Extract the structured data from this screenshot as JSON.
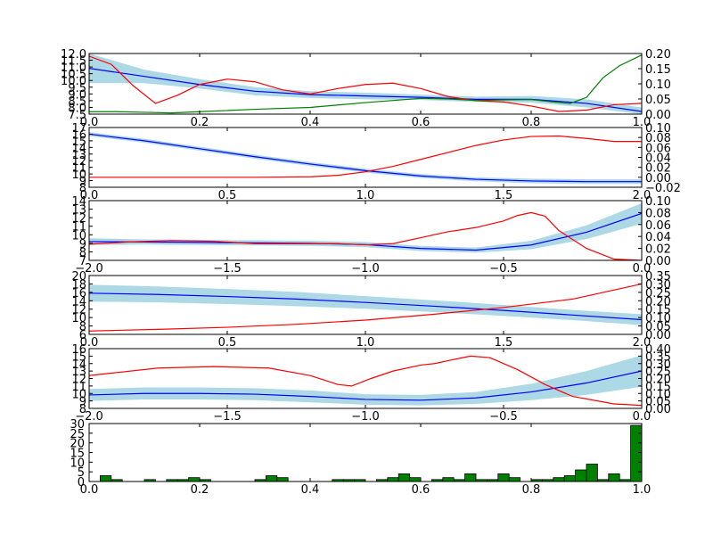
{
  "chart_data": [
    {
      "type": "line",
      "xlim": [
        0,
        1
      ],
      "ylim_left": [
        7.5,
        12.0
      ],
      "ylim_right": [
        0.0,
        0.2
      ],
      "x_ticks": [
        "0.0",
        "0.2",
        "0.4",
        "0.6",
        "0.8",
        "1.0"
      ],
      "x_tick_values": [
        0,
        0.2,
        0.4,
        0.6,
        0.8,
        1.0
      ],
      "yleft_ticks": [
        "7.5",
        "8.0",
        "8.5",
        "9.0",
        "9.5",
        "10.0",
        "10.5",
        "11.0",
        "11.5",
        "12.0"
      ],
      "yleft_tick_values": [
        7.5,
        8.0,
        8.5,
        9.0,
        9.5,
        10.0,
        10.5,
        11.0,
        11.5,
        12.0
      ],
      "yright_ticks": [
        "0.00",
        "0.05",
        "0.10",
        "0.15",
        "0.20"
      ],
      "yright_tick_values": [
        0,
        0.05,
        0.1,
        0.15,
        0.2
      ],
      "band_color": "#add8e6",
      "series": [
        {
          "role": "mean",
          "axis": "left",
          "color": "#0000ff",
          "x": [
            0,
            0.1,
            0.2,
            0.3,
            0.4,
            0.5,
            0.6,
            0.7,
            0.8,
            0.9,
            1.0
          ],
          "y": [
            10.9,
            10.3,
            9.7,
            9.2,
            8.95,
            8.85,
            8.75,
            8.6,
            8.6,
            8.3,
            7.7
          ]
        },
        {
          "role": "band",
          "axis": "left",
          "x": [
            0,
            0.1,
            0.2,
            0.3,
            0.4,
            0.5,
            0.6,
            0.7,
            0.8,
            0.9,
            1.0
          ],
          "lower": [
            9.8,
            9.8,
            9.4,
            8.9,
            8.7,
            8.6,
            8.55,
            8.4,
            8.35,
            8.0,
            7.5
          ],
          "upper": [
            12.0,
            10.8,
            10.1,
            9.5,
            9.2,
            9.1,
            8.95,
            8.8,
            8.85,
            8.6,
            8.0
          ]
        },
        {
          "role": "line",
          "axis": "left",
          "color": "#ff0000",
          "x": [
            0,
            0.04,
            0.08,
            0.12,
            0.16,
            0.2,
            0.25,
            0.3,
            0.35,
            0.4,
            0.45,
            0.5,
            0.55,
            0.6,
            0.65,
            0.7,
            0.75,
            0.8,
            0.85,
            0.9,
            0.95,
            1.0
          ],
          "y": [
            11.8,
            11.2,
            9.6,
            8.3,
            8.9,
            9.7,
            10.1,
            9.9,
            9.3,
            9.0,
            9.4,
            9.7,
            9.8,
            9.4,
            8.8,
            8.5,
            8.4,
            8.1,
            7.7,
            7.8,
            8.2,
            8.3
          ]
        },
        {
          "role": "line",
          "axis": "right",
          "color": "#008000",
          "x": [
            0,
            0.05,
            0.1,
            0.15,
            0.2,
            0.3,
            0.4,
            0.5,
            0.6,
            0.65,
            0.7,
            0.75,
            0.8,
            0.84,
            0.87,
            0.9,
            0.93,
            0.96,
            1.0
          ],
          "y": [
            0.008,
            0.008,
            0.006,
            0.004,
            0.008,
            0.016,
            0.022,
            0.038,
            0.052,
            0.05,
            0.045,
            0.047,
            0.048,
            0.04,
            0.035,
            0.055,
            0.12,
            0.16,
            0.195
          ]
        }
      ]
    },
    {
      "type": "line",
      "xlim": [
        0,
        2
      ],
      "ylim_left": [
        8,
        17
      ],
      "ylim_right": [
        -0.02,
        0.1
      ],
      "x_ticks": [
        "0.0",
        "0.5",
        "1.0",
        "1.5",
        "2.0"
      ],
      "x_tick_values": [
        0,
        0.5,
        1.0,
        1.5,
        2.0
      ],
      "yleft_ticks": [
        "8",
        "9",
        "10",
        "11",
        "12",
        "13",
        "14",
        "15",
        "16",
        "17"
      ],
      "yleft_tick_values": [
        8,
        9,
        10,
        11,
        12,
        13,
        14,
        15,
        16,
        17
      ],
      "yright_ticks": [
        "−0.02",
        "0.00",
        "0.02",
        "0.04",
        "0.06",
        "0.08",
        "0.10"
      ],
      "yright_tick_values": [
        -0.02,
        0,
        0.02,
        0.04,
        0.06,
        0.08,
        0.1
      ],
      "band_color": "#add8e6",
      "series": [
        {
          "role": "mean",
          "axis": "left",
          "color": "#0000ff",
          "x": [
            0,
            0.2,
            0.4,
            0.6,
            0.8,
            1.0,
            1.2,
            1.4,
            1.6,
            1.8,
            2.0
          ],
          "y": [
            16.0,
            15.0,
            13.8,
            12.6,
            11.5,
            10.5,
            9.7,
            9.2,
            8.95,
            8.85,
            8.85
          ]
        },
        {
          "role": "band",
          "axis": "left",
          "x": [
            0,
            0.2,
            0.4,
            0.6,
            0.8,
            1.0,
            1.2,
            1.4,
            1.6,
            1.8,
            2.0
          ],
          "lower": [
            15.7,
            14.7,
            13.5,
            12.3,
            11.2,
            10.2,
            9.4,
            8.9,
            8.6,
            8.5,
            8.5
          ],
          "upper": [
            16.3,
            15.3,
            14.1,
            12.9,
            11.8,
            10.8,
            10.0,
            9.5,
            9.3,
            9.2,
            9.2
          ]
        },
        {
          "role": "line",
          "axis": "right",
          "color": "#ff0000",
          "x": [
            0,
            0.3,
            0.6,
            0.8,
            0.9,
            1.0,
            1.1,
            1.2,
            1.3,
            1.4,
            1.5,
            1.6,
            1.7,
            1.8,
            1.9,
            2.0
          ],
          "y": [
            0,
            0,
            0,
            0.001,
            0.004,
            0.011,
            0.022,
            0.036,
            0.05,
            0.064,
            0.075,
            0.082,
            0.083,
            0.078,
            0.072,
            0.072
          ]
        }
      ]
    },
    {
      "type": "line",
      "xlim": [
        -2,
        0
      ],
      "ylim_left": [
        7,
        14
      ],
      "ylim_right": [
        0,
        0.1
      ],
      "x_ticks": [
        "−2.0",
        "−1.5",
        "−1.0",
        "−0.5",
        "0.0"
      ],
      "x_tick_values": [
        -2,
        -1.5,
        -1,
        -0.5,
        0
      ],
      "yleft_ticks": [
        "7",
        "8",
        "9",
        "10",
        "11",
        "12",
        "13",
        "14"
      ],
      "yleft_tick_values": [
        7,
        8,
        9,
        10,
        11,
        12,
        13,
        14
      ],
      "yright_ticks": [
        "0.00",
        "0.02",
        "0.04",
        "0.06",
        "0.08",
        "0.10"
      ],
      "yright_tick_values": [
        0,
        0.02,
        0.04,
        0.06,
        0.08,
        0.1
      ],
      "band_color": "#add8e6",
      "series": [
        {
          "role": "mean",
          "axis": "left",
          "color": "#0000ff",
          "x": [
            -2,
            -1.8,
            -1.6,
            -1.4,
            -1.2,
            -1.0,
            -0.8,
            -0.6,
            -0.4,
            -0.2,
            0
          ],
          "y": [
            9.2,
            9.15,
            9.1,
            9.05,
            9.0,
            8.85,
            8.4,
            8.2,
            8.8,
            10.3,
            12.5
          ]
        },
        {
          "role": "band",
          "axis": "left",
          "x": [
            -2,
            -1.8,
            -1.6,
            -1.4,
            -1.2,
            -1.0,
            -0.8,
            -0.6,
            -0.4,
            -0.2,
            0
          ],
          "lower": [
            8.8,
            8.85,
            8.8,
            8.75,
            8.7,
            8.55,
            8.1,
            7.9,
            8.3,
            9.5,
            11.3
          ],
          "upper": [
            9.6,
            9.45,
            9.4,
            9.35,
            9.3,
            9.15,
            8.7,
            8.5,
            9.3,
            11.1,
            13.7
          ]
        },
        {
          "role": "line",
          "axis": "right",
          "color": "#ff0000",
          "x": [
            -2,
            -1.85,
            -1.7,
            -1.55,
            -1.4,
            -1.25,
            -1.1,
            -1.0,
            -0.9,
            -0.8,
            -0.7,
            -0.6,
            -0.5,
            -0.45,
            -0.4,
            -0.35,
            -0.3,
            -0.2,
            -0.1,
            0
          ],
          "y": [
            0.027,
            0.031,
            0.033,
            0.032,
            0.028,
            0.028,
            0.028,
            0.026,
            0.028,
            0.038,
            0.048,
            0.055,
            0.066,
            0.075,
            0.08,
            0.074,
            0.05,
            0.02,
            0.002,
            0
          ]
        }
      ]
    },
    {
      "type": "line",
      "xlim": [
        0,
        2
      ],
      "ylim_left": [
        6,
        20
      ],
      "ylim_right": [
        0,
        0.35
      ],
      "x_ticks": [
        "0.0",
        "0.5",
        "1.0",
        "1.5",
        "2.0"
      ],
      "x_tick_values": [
        0,
        0.5,
        1.0,
        1.5,
        2.0
      ],
      "yleft_ticks": [
        "6",
        "8",
        "10",
        "12",
        "14",
        "16",
        "18",
        "20"
      ],
      "yleft_tick_values": [
        6,
        8,
        10,
        12,
        14,
        16,
        18,
        20
      ],
      "yright_ticks": [
        "0.00",
        "0.05",
        "0.10",
        "0.15",
        "0.20",
        "0.25",
        "0.30",
        "0.35"
      ],
      "yright_tick_values": [
        0,
        0.05,
        0.1,
        0.15,
        0.2,
        0.25,
        0.3,
        0.35
      ],
      "band_color": "#add8e6",
      "series": [
        {
          "role": "mean",
          "axis": "left",
          "color": "#0000ff",
          "x": [
            0,
            0.25,
            0.5,
            0.75,
            1.0,
            1.25,
            1.5,
            1.75,
            2.0
          ],
          "y": [
            15.8,
            15.5,
            15.0,
            14.4,
            13.6,
            12.7,
            11.7,
            10.6,
            9.5
          ]
        },
        {
          "role": "band",
          "axis": "left",
          "x": [
            0,
            0.25,
            0.5,
            0.75,
            1.0,
            1.25,
            1.5,
            1.75,
            2.0
          ],
          "lower": [
            13.8,
            13.6,
            13.2,
            12.7,
            12.1,
            11.3,
            10.4,
            9.4,
            8.2
          ],
          "upper": [
            17.8,
            17.4,
            16.8,
            16.1,
            15.1,
            14.1,
            13.0,
            11.8,
            10.8
          ]
        },
        {
          "role": "line",
          "axis": "right",
          "color": "#ff0000",
          "x": [
            0,
            0.25,
            0.5,
            0.75,
            1.0,
            1.25,
            1.5,
            1.75,
            2.0
          ],
          "y": [
            0.02,
            0.03,
            0.042,
            0.06,
            0.085,
            0.12,
            0.16,
            0.21,
            0.3
          ]
        }
      ]
    },
    {
      "type": "line",
      "xlim": [
        -2,
        0
      ],
      "ylim_left": [
        8,
        16
      ],
      "ylim_right": [
        0,
        0.4
      ],
      "x_ticks": [
        "−2.0",
        "−1.5",
        "−1.0",
        "−0.5",
        "0.0"
      ],
      "x_tick_values": [
        -2,
        -1.5,
        -1,
        -0.5,
        0
      ],
      "yleft_ticks": [
        "8",
        "9",
        "10",
        "11",
        "12",
        "13",
        "14",
        "15",
        "16"
      ],
      "yleft_tick_values": [
        8,
        9,
        10,
        11,
        12,
        13,
        14,
        15,
        16
      ],
      "yright_ticks": [
        "0.00",
        "0.05",
        "0.10",
        "0.15",
        "0.20",
        "0.25",
        "0.30",
        "0.35",
        "0.40"
      ],
      "yright_tick_values": [
        0,
        0.05,
        0.1,
        0.15,
        0.2,
        0.25,
        0.3,
        0.35,
        0.4
      ],
      "band_color": "#add8e6",
      "series": [
        {
          "role": "mean",
          "axis": "left",
          "color": "#0000ff",
          "x": [
            -2,
            -1.8,
            -1.6,
            -1.4,
            -1.2,
            -1.0,
            -0.8,
            -0.6,
            -0.4,
            -0.2,
            0
          ],
          "y": [
            9.8,
            10.0,
            10.0,
            9.9,
            9.6,
            9.2,
            9.1,
            9.4,
            10.2,
            11.4,
            13.0
          ]
        },
        {
          "role": "band",
          "axis": "left",
          "x": [
            -2,
            -1.8,
            -1.6,
            -1.4,
            -1.2,
            -1.0,
            -0.8,
            -0.6,
            -0.4,
            -0.2,
            0
          ],
          "lower": [
            9.0,
            9.2,
            9.2,
            9.1,
            8.8,
            8.5,
            8.4,
            8.6,
            9.1,
            9.8,
            10.9
          ],
          "upper": [
            10.6,
            10.8,
            10.8,
            10.7,
            10.4,
            9.9,
            9.8,
            10.2,
            11.3,
            13.0,
            15.1
          ]
        },
        {
          "role": "line",
          "axis": "right",
          "color": "#ff0000",
          "x": [
            -2,
            -1.9,
            -1.75,
            -1.55,
            -1.35,
            -1.2,
            -1.1,
            -1.05,
            -0.98,
            -0.9,
            -0.8,
            -0.75,
            -0.7,
            -0.62,
            -0.55,
            -0.45,
            -0.35,
            -0.25,
            -0.1,
            0
          ],
          "y": [
            0.22,
            0.24,
            0.27,
            0.28,
            0.27,
            0.22,
            0.16,
            0.15,
            0.2,
            0.25,
            0.29,
            0.3,
            0.32,
            0.35,
            0.34,
            0.26,
            0.16,
            0.08,
            0.03,
            0.02
          ]
        }
      ]
    },
    {
      "type": "bar",
      "xlim": [
        0,
        1
      ],
      "ylim": [
        0,
        30
      ],
      "bar_color": "#008000",
      "bar_width": 0.02,
      "x_ticks": [
        "0.0",
        "0.2",
        "0.4",
        "0.6",
        "0.8",
        "1.0"
      ],
      "x_tick_values": [
        0,
        0.2,
        0.4,
        0.6,
        0.8,
        1.0
      ],
      "y_ticks": [
        "0",
        "5",
        "10",
        "15",
        "20",
        "25",
        "30"
      ],
      "y_tick_values": [
        0,
        5,
        10,
        15,
        20,
        25,
        30
      ],
      "x": [
        0,
        0.02,
        0.04,
        0.06,
        0.08,
        0.1,
        0.12,
        0.14,
        0.16,
        0.18,
        0.2,
        0.22,
        0.24,
        0.26,
        0.28,
        0.3,
        0.32,
        0.34,
        0.36,
        0.38,
        0.4,
        0.42,
        0.44,
        0.46,
        0.48,
        0.5,
        0.52,
        0.54,
        0.56,
        0.58,
        0.6,
        0.62,
        0.64,
        0.66,
        0.68,
        0.7,
        0.72,
        0.74,
        0.76,
        0.78,
        0.8,
        0.82,
        0.84,
        0.86,
        0.88,
        0.9,
        0.92,
        0.94,
        0.96,
        0.98
      ],
      "values": [
        0,
        3,
        1,
        0,
        0,
        1,
        0,
        1,
        1,
        2,
        1,
        0,
        0,
        0,
        0,
        1,
        3,
        2,
        0,
        0,
        0,
        0,
        1,
        1,
        1,
        0,
        1,
        2,
        4,
        2,
        0,
        1,
        2,
        1,
        4,
        1,
        1,
        4,
        2,
        0,
        1,
        1,
        2,
        3,
        6,
        9,
        1,
        4,
        1,
        29
      ]
    }
  ]
}
